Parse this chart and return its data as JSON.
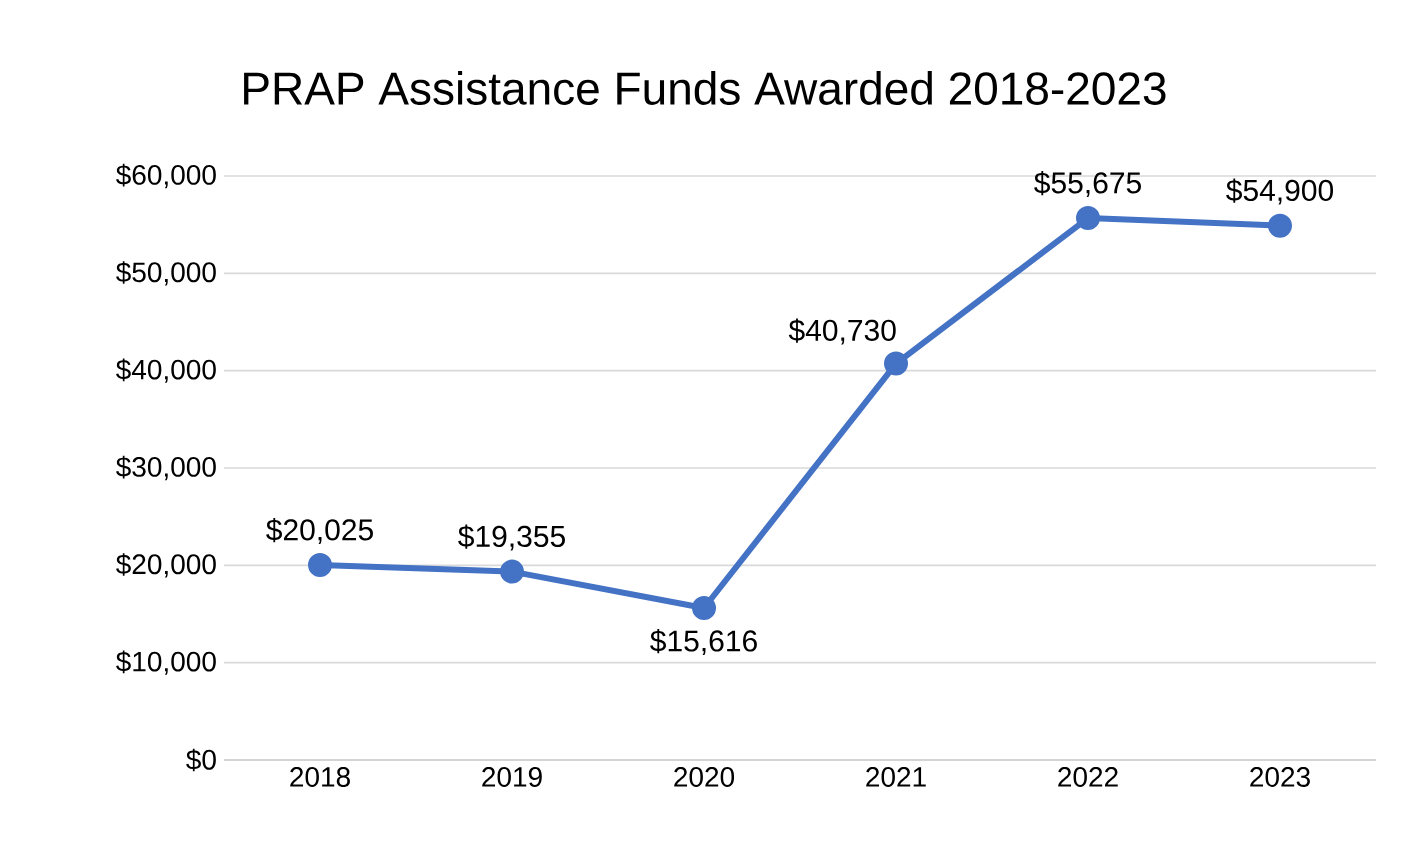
{
  "chart_data": {
    "type": "line",
    "title": "PRAP Assistance Funds Awarded 2018-2023",
    "categories": [
      "2018",
      "2019",
      "2020",
      "2021",
      "2022",
      "2023"
    ],
    "series": [
      {
        "color": "#4472c4",
        "values": [
          20025,
          19355,
          15616,
          40730,
          55675,
          54900
        ],
        "value_labels": [
          "$20,025",
          "$19,355",
          "$15,616",
          "$40,730",
          "$55,675",
          "$54,900"
        ]
      }
    ],
    "ylim": [
      0,
      60000
    ],
    "yticks": [
      {
        "value": 0,
        "label": "$0"
      },
      {
        "value": 10000,
        "label": "$10,000"
      },
      {
        "value": 20000,
        "label": "$20,000"
      },
      {
        "value": 30000,
        "label": "$30,000"
      },
      {
        "value": 40000,
        "label": "$40,000"
      },
      {
        "value": 50000,
        "label": "$50,000"
      },
      {
        "value": 60000,
        "label": "$60,000"
      }
    ],
    "grid": "y",
    "marker": "circle",
    "line_style": "solid"
  }
}
